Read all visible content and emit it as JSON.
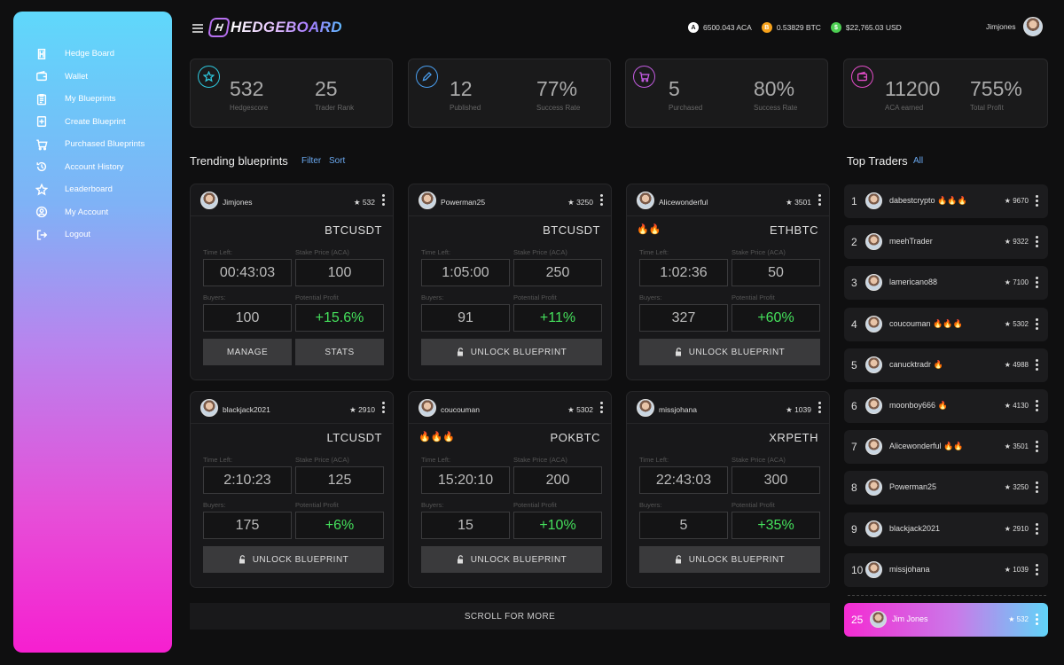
{
  "brand": {
    "logo_mark": "H",
    "name": "HEDGEBOARD"
  },
  "sidebar": {
    "items": [
      {
        "label": "Hedge Board",
        "icon": "hedgeboard-logo-icon"
      },
      {
        "label": "Wallet",
        "icon": "wallet-icon"
      },
      {
        "label": "My Blueprints",
        "icon": "clipboard-icon"
      },
      {
        "label": "Create Blueprint",
        "icon": "add-document-icon"
      },
      {
        "label": "Purchased Blueprints",
        "icon": "cart-icon"
      },
      {
        "label": "Account History",
        "icon": "history-icon"
      },
      {
        "label": "Leaderboard",
        "icon": "star-icon"
      },
      {
        "label": "My Account",
        "icon": "user-circle-icon"
      },
      {
        "label": "Logout",
        "icon": "logout-icon"
      }
    ]
  },
  "header": {
    "balances": [
      {
        "symbol": "A",
        "value": "6500.043 ACA",
        "color": "#ffffff"
      },
      {
        "symbol": "B",
        "value": "0.53829 BTC",
        "color": "#f7a21b"
      },
      {
        "symbol": "$",
        "value": "$22,765.03 USD",
        "color": "#4ccf52"
      }
    ],
    "username": "Jimjones"
  },
  "stats": [
    {
      "icon": "star-icon",
      "color": "#2ec7dd",
      "a_value": "532",
      "a_label": "Hedgescore",
      "b_value": "25",
      "b_label": "Trader Rank"
    },
    {
      "icon": "pencil-icon",
      "color": "#4a9ff0",
      "a_value": "12",
      "a_label": "Published",
      "b_value": "77%",
      "b_label": "Success Rate"
    },
    {
      "icon": "cart-icon",
      "color": "#c25be0",
      "a_value": "5",
      "a_label": "Purchased",
      "b_value": "80%",
      "b_label": "Success Rate"
    },
    {
      "icon": "wallet-icon",
      "color": "#e24dc8",
      "a_value": "11200",
      "a_label": "ACA earned",
      "b_value": "755%",
      "b_label": "Total Profit"
    }
  ],
  "trending": {
    "title": "Trending blueprints",
    "filter_label": "Filter",
    "sort_label": "Sort",
    "labels": {
      "time_left": "Time Left:",
      "stake_price": "Stake Price (ACA)",
      "buyers": "Buyers:",
      "potential_profit": "Potential Profit"
    },
    "cards": [
      {
        "user": "Jimjones",
        "score": "532",
        "fire": "",
        "pair": "BTCUSDT",
        "time_left": "00:43:03",
        "stake": "100",
        "buyers": "100",
        "profit": "+15.6%",
        "buttons": [
          "MANAGE",
          "STATS"
        ]
      },
      {
        "user": "Powerman25",
        "score": "3250",
        "fire": "",
        "pair": "BTCUSDT",
        "time_left": "1:05:00",
        "stake": "250",
        "buyers": "91",
        "profit": "+11%",
        "buttons": [
          "UNLOCK BLUEPRINT"
        ]
      },
      {
        "user": "Alicewonderful",
        "score": "3501",
        "fire": "🔥🔥",
        "pair": "ETHBTC",
        "time_left": "1:02:36",
        "stake": "50",
        "buyers": "327",
        "profit": "+60%",
        "buttons": [
          "UNLOCK BLUEPRINT"
        ]
      },
      {
        "user": "blackjack2021",
        "score": "2910",
        "fire": "",
        "pair": "LTCUSDT",
        "time_left": "2:10:23",
        "stake": "125",
        "buyers": "175",
        "profit": "+6%",
        "buttons": [
          "UNLOCK BLUEPRINT"
        ]
      },
      {
        "user": "coucouman",
        "score": "5302",
        "fire": "🔥🔥🔥",
        "pair": "POKBTC",
        "time_left": "15:20:10",
        "stake": "200",
        "buyers": "15",
        "profit": "+10%",
        "buttons": [
          "UNLOCK BLUEPRINT"
        ]
      },
      {
        "user": "missjohana",
        "score": "1039",
        "fire": "",
        "pair": "XRPETH",
        "time_left": "22:43:03",
        "stake": "300",
        "buyers": "5",
        "profit": "+35%",
        "buttons": [
          "UNLOCK BLUEPRINT"
        ]
      }
    ],
    "scroll_label": "SCROLL FOR MORE"
  },
  "top_traders": {
    "title": "Top Traders",
    "all_label": "All",
    "list": [
      {
        "rank": "1",
        "name": "dabestcrypto 🔥🔥🔥",
        "score": "9670"
      },
      {
        "rank": "2",
        "name": "meehTrader",
        "score": "9322"
      },
      {
        "rank": "3",
        "name": "lamericano88",
        "score": "7100"
      },
      {
        "rank": "4",
        "name": "coucouman 🔥🔥🔥",
        "score": "5302"
      },
      {
        "rank": "5",
        "name": "canucktradr 🔥",
        "score": "4988"
      },
      {
        "rank": "6",
        "name": "moonboy666 🔥",
        "score": "4130"
      },
      {
        "rank": "7",
        "name": "Alicewonderful 🔥🔥",
        "score": "3501"
      },
      {
        "rank": "8",
        "name": "Powerman25",
        "score": "3250"
      },
      {
        "rank": "9",
        "name": "blackjack2021",
        "score": "2910"
      },
      {
        "rank": "10",
        "name": "missjohana",
        "score": "1039"
      }
    ],
    "me": {
      "rank": "25",
      "name": "Jim Jones",
      "score": "532"
    }
  }
}
